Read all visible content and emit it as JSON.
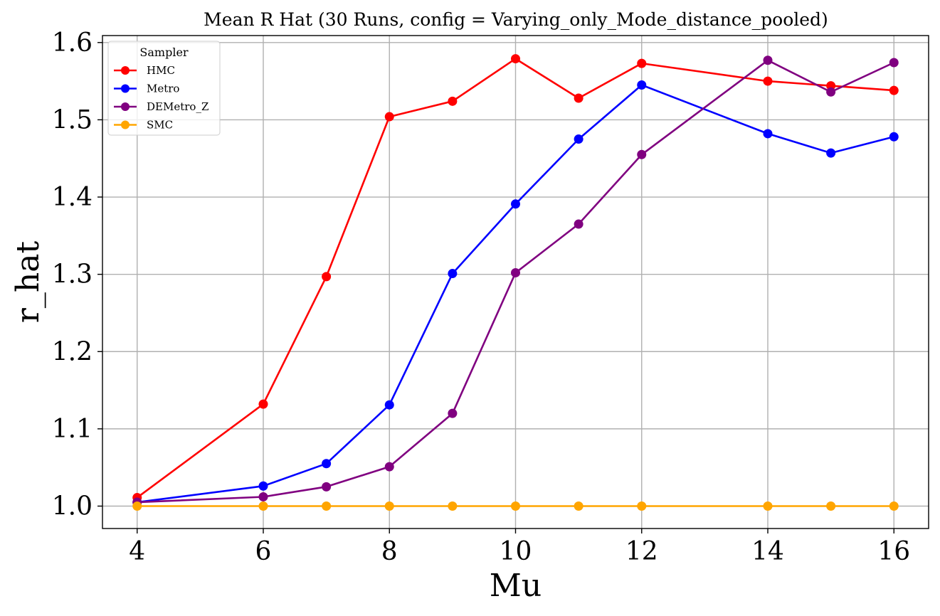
{
  "chart_data": {
    "type": "line",
    "title": "Mean R Hat (30 Runs, config = Varying_only_Mode_distance_pooled)",
    "xlabel": "Mu",
    "ylabel": "r_hat",
    "xlim": [
      3.45,
      16.55
    ],
    "ylim": [
      0.971,
      1.609
    ],
    "xticks": [
      4,
      6,
      8,
      10,
      12,
      14,
      16
    ],
    "yticks": [
      1.0,
      1.1,
      1.2,
      1.3,
      1.4,
      1.5,
      1.6
    ],
    "grid": true,
    "legend": {
      "title": "Sampler",
      "placement": "upper-left"
    },
    "x": [
      4,
      6,
      7,
      8,
      9,
      10,
      11,
      12,
      14,
      15,
      16
    ],
    "series": [
      {
        "name": "HMC",
        "color": "#ff0000",
        "values": [
          1.011,
          1.132,
          1.297,
          1.504,
          1.524,
          1.579,
          1.528,
          1.573,
          1.55,
          1.544,
          1.538
        ]
      },
      {
        "name": "Metro",
        "color": "#0000ff",
        "values": [
          1.005,
          1.026,
          1.055,
          1.131,
          1.301,
          1.391,
          1.475,
          1.545,
          1.482,
          1.457,
          1.478
        ]
      },
      {
        "name": "DEMetro_Z",
        "color": "#800080",
        "values": [
          1.005,
          1.012,
          1.025,
          1.051,
          1.12,
          1.302,
          1.365,
          1.455,
          1.577,
          1.536,
          1.574
        ]
      },
      {
        "name": "SMC",
        "color": "#ffa500",
        "values": [
          1.0,
          1.0,
          1.0,
          1.0,
          1.0,
          1.0,
          1.0,
          1.0,
          1.0,
          1.0,
          1.0
        ]
      }
    ]
  }
}
